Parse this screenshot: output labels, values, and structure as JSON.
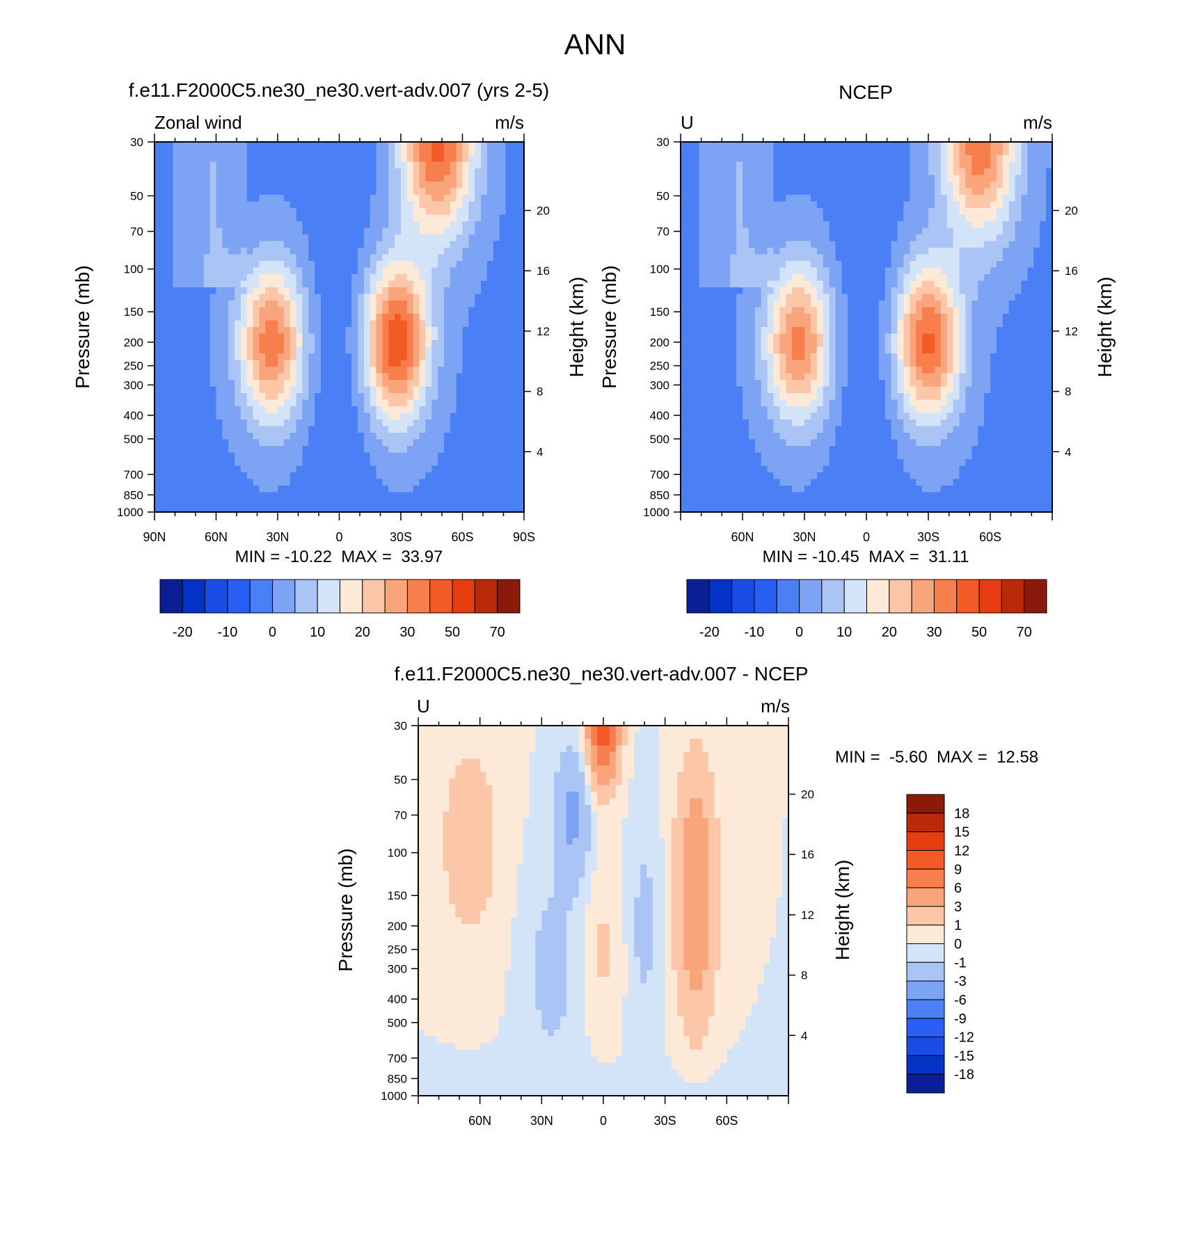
{
  "page_title": "ANN",
  "colors": {
    "main_scale": [
      "#0a1e96",
      "#0533c8",
      "#1a4de6",
      "#2a5ff5",
      "#4a7ff5",
      "#7da3f5",
      "#a9c4f5",
      "#d3e4f8",
      "#fde9d8",
      "#fcc7a8",
      "#f9a47a",
      "#f77f4d",
      "#f45a25",
      "#e63d10",
      "#b82a0a",
      "#8b1a0a"
    ],
    "diff_scale": [
      "#0a1e96",
      "#0533c8",
      "#1a4de6",
      "#2a5ff5",
      "#4a7ff5",
      "#7da3f5",
      "#a9c4f5",
      "#d3e4f8",
      "#fde9d8",
      "#fcc7a8",
      "#f9a47a",
      "#f77f4d",
      "#f45a25",
      "#e63d10",
      "#b82a0a",
      "#8b1a0a"
    ]
  },
  "chart_data": [
    {
      "type": "heatmap",
      "id": "model",
      "title": "f.e11.F2000C5.ne30_ne30.vert-adv.007 (yrs 2-5)",
      "left_label": "Zonal wind",
      "right_label": "m/s",
      "ylabel": "Pressure (mb)",
      "ylabel_right": "Height (km)",
      "pressure_ticks": [
        30,
        50,
        70,
        100,
        150,
        200,
        250,
        300,
        400,
        500,
        700,
        850,
        1000
      ],
      "height_ticks": [
        20,
        16,
        12,
        8,
        4
      ],
      "lat_range": [
        90,
        -90
      ],
      "lat_ticks": [
        {
          "v": 90,
          "label": "90N"
        },
        {
          "v": 60,
          "label": "60N"
        },
        {
          "v": 30,
          "label": "30N"
        },
        {
          "v": 0,
          "label": "0"
        },
        {
          "v": -30,
          "label": "30S"
        },
        {
          "v": -60,
          "label": "60S"
        },
        {
          "v": -90,
          "label": "90S"
        }
      ],
      "stats": "MIN = -10.22  MAX =  33.97",
      "colorbar_labels": [
        "-20",
        "-10",
        "0",
        "10",
        "20",
        "30",
        "50",
        "70"
      ],
      "jets": [
        {
          "lat": 33,
          "p": 200,
          "peak": 28
        },
        {
          "lat": -28,
          "p": 200,
          "peak": 34
        },
        {
          "lat": -48,
          "p": 30,
          "peak": 32
        }
      ]
    },
    {
      "type": "heatmap",
      "id": "obs",
      "title": "NCEP",
      "left_label": "U",
      "right_label": "m/s",
      "ylabel": "Pressure (mb)",
      "ylabel_right": "Height (km)",
      "pressure_ticks": [
        30,
        50,
        70,
        100,
        150,
        200,
        250,
        300,
        400,
        500,
        700,
        850,
        1000
      ],
      "height_ticks": [
        20,
        16,
        12,
        8,
        4
      ],
      "lat_range": [
        90,
        -90
      ],
      "lat_ticks": [
        {
          "v": 60,
          "label": "60N"
        },
        {
          "v": 30,
          "label": "30N"
        },
        {
          "v": 0,
          "label": "0"
        },
        {
          "v": -30,
          "label": "30S"
        },
        {
          "v": -60,
          "label": "60S"
        }
      ],
      "stats": "MIN = -10.45  MAX =  31.11",
      "colorbar_labels": [
        "-20",
        "-10",
        "0",
        "10",
        "20",
        "30",
        "50",
        "70"
      ],
      "jets": [
        {
          "lat": 33,
          "p": 200,
          "peak": 27
        },
        {
          "lat": -30,
          "p": 200,
          "peak": 31
        },
        {
          "lat": -55,
          "p": 30,
          "peak": 29
        }
      ]
    },
    {
      "type": "heatmap",
      "id": "diff",
      "title": "f.e11.F2000C5.ne30_ne30.vert-adv.007 - NCEP",
      "left_label": "U",
      "right_label": "m/s",
      "ylabel": "Pressure (mb)",
      "ylabel_right": "Height (km)",
      "pressure_ticks": [
        30,
        50,
        70,
        100,
        150,
        200,
        250,
        300,
        400,
        500,
        700,
        850,
        1000
      ],
      "height_ticks": [
        20,
        16,
        12,
        8,
        4
      ],
      "lat_range": [
        90,
        -90
      ],
      "lat_ticks": [
        {
          "v": 60,
          "label": "60N"
        },
        {
          "v": 30,
          "label": "30N"
        },
        {
          "v": 0,
          "label": "0"
        },
        {
          "v": -30,
          "label": "30S"
        },
        {
          "v": -60,
          "label": "60S"
        }
      ],
      "stats": "MIN =  -5.60  MAX =  12.58",
      "colorbar_labels": [
        "18",
        "15",
        "12",
        "9",
        "6",
        "3",
        "1",
        "0",
        "-1",
        "-3",
        "-6",
        "-9",
        "-12",
        "-15",
        "-18"
      ]
    }
  ]
}
